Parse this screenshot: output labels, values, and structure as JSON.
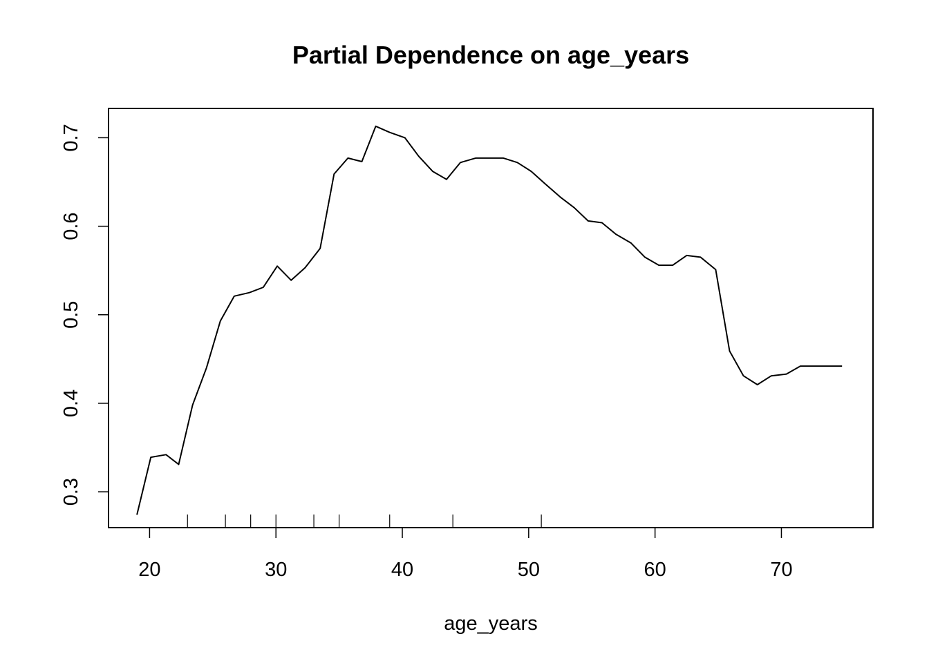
{
  "chart_data": {
    "type": "line",
    "title": "Partial Dependence on age_years",
    "xlabel": "age_years",
    "ylabel": "",
    "xlim": [
      16.75,
      77.25
    ],
    "ylim": [
      0.2595,
      0.7331
    ],
    "x_ticks": [
      20,
      30,
      40,
      50,
      60,
      70
    ],
    "y_ticks": [
      0.3,
      0.4,
      0.5,
      0.6,
      0.7
    ],
    "x_tick_labels": [
      "20",
      "30",
      "40",
      "50",
      "60",
      "70"
    ],
    "y_tick_labels": [
      "0.3",
      "0.4",
      "0.5",
      "0.6",
      "0.7"
    ],
    "grid": false,
    "legend": "none",
    "series": [
      {
        "x": [
          19,
          20.1,
          21.3,
          22.3,
          23.4,
          24.5,
          25.6,
          26.7,
          27.9,
          29,
          30.1,
          31.2,
          32.3,
          33.5,
          34.6,
          35.7,
          36.8,
          37.9,
          39,
          40.2,
          41.3,
          42.4,
          43.5,
          44.6,
          45.8,
          46.9,
          48,
          49.1,
          50.2,
          51.3,
          52.5,
          53.6,
          54.7,
          55.8,
          56.9,
          58.1,
          59.2,
          60.3,
          61.4,
          62.5,
          63.6,
          64.8,
          65.9,
          67,
          68.1,
          69.2,
          70.4,
          71.5,
          72.6,
          73.7,
          74.8
        ],
        "y": [
          0.274,
          0.339,
          0.342,
          0.331,
          0.398,
          0.44,
          0.493,
          0.521,
          0.525,
          0.531,
          0.555,
          0.539,
          0.553,
          0.575,
          0.659,
          0.677,
          0.673,
          0.713,
          0.706,
          0.7,
          0.679,
          0.662,
          0.653,
          0.672,
          0.677,
          0.677,
          0.677,
          0.672,
          0.662,
          0.648,
          0.633,
          0.621,
          0.606,
          0.604,
          0.591,
          0.581,
          0.565,
          0.556,
          0.556,
          0.567,
          0.565,
          0.551,
          0.459,
          0.431,
          0.421,
          0.431,
          0.433,
          0.442,
          0.442,
          0.442,
          0.442
        ]
      }
    ],
    "rug": [
      23,
      26,
      28,
      30,
      33,
      35,
      39,
      44,
      51
    ]
  }
}
